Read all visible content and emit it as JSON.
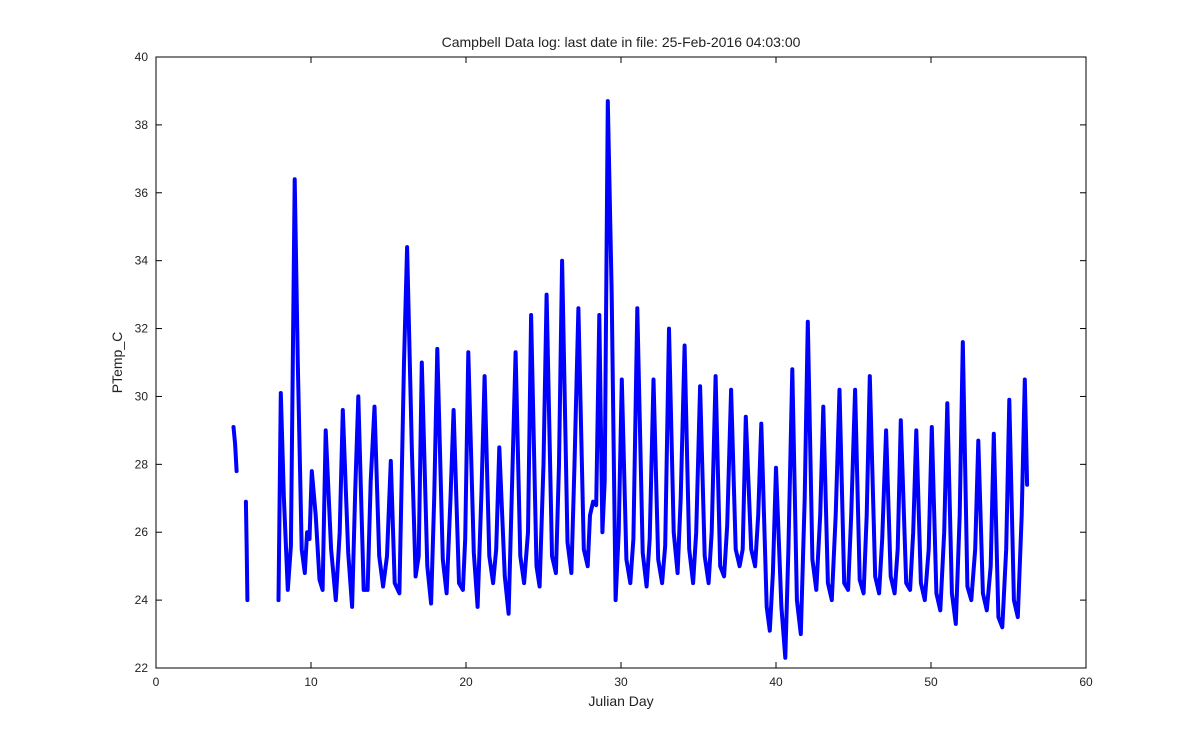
{
  "chart_data": {
    "type": "line",
    "title": "Campbell Data log: last date in file: 25-Feb-2016 04:03:00",
    "xlabel": "Julian Day",
    "ylabel": "PTemp_C",
    "xlim": [
      0,
      60
    ],
    "ylim": [
      22,
      40
    ],
    "xticks": [
      0,
      10,
      20,
      30,
      40,
      50,
      60
    ],
    "yticks": [
      22,
      24,
      26,
      28,
      30,
      32,
      34,
      36,
      38,
      40
    ],
    "grid": false,
    "legend": "none",
    "line_color": "#0000ff",
    "series": [
      {
        "segments": [
          [
            [
              5.0,
              29.1
            ],
            [
              5.1,
              28.6
            ],
            [
              5.2,
              27.8
            ]
          ],
          [
            [
              5.8,
              26.9
            ],
            [
              5.85,
              25.5
            ],
            [
              5.9,
              24.0
            ]
          ],
          [
            [
              7.9,
              24.0
            ],
            [
              8.05,
              30.1
            ],
            [
              8.25,
              27.0
            ],
            [
              8.5,
              24.3
            ],
            [
              8.7,
              25.6
            ],
            [
              8.95,
              36.4
            ],
            [
              9.15,
              31.0
            ],
            [
              9.4,
              25.5
            ],
            [
              9.6,
              24.8
            ],
            [
              9.75,
              26.0
            ],
            [
              9.9,
              25.8
            ],
            [
              10.05,
              27.8
            ],
            [
              10.3,
              26.5
            ],
            [
              10.55,
              24.6
            ],
            [
              10.75,
              24.3
            ],
            [
              10.95,
              29.0
            ],
            [
              11.3,
              25.5
            ],
            [
              11.6,
              24.0
            ],
            [
              11.85,
              26.0
            ],
            [
              12.05,
              29.6
            ],
            [
              12.4,
              25.4
            ],
            [
              12.65,
              23.8
            ],
            [
              12.85,
              27.2
            ],
            [
              13.05,
              30.0
            ],
            [
              13.4,
              24.3
            ],
            [
              13.65,
              24.3
            ],
            [
              13.85,
              27.5
            ],
            [
              14.1,
              29.7
            ],
            [
              14.4,
              25.3
            ],
            [
              14.65,
              24.4
            ],
            [
              14.9,
              25.3
            ],
            [
              15.15,
              28.1
            ],
            [
              15.4,
              24.5
            ],
            [
              15.7,
              24.2
            ],
            [
              16.0,
              31.0
            ],
            [
              16.2,
              34.4
            ],
            [
              16.5,
              28.5
            ],
            [
              16.75,
              24.7
            ],
            [
              16.95,
              25.3
            ],
            [
              17.15,
              31.0
            ],
            [
              17.5,
              25.0
            ],
            [
              17.75,
              23.9
            ],
            [
              17.95,
              27.0
            ],
            [
              18.15,
              31.4
            ],
            [
              18.5,
              25.2
            ],
            [
              18.75,
              24.2
            ],
            [
              19.0,
              27.0
            ],
            [
              19.2,
              29.6
            ],
            [
              19.55,
              24.5
            ],
            [
              19.8,
              24.3
            ],
            [
              19.95,
              25.8
            ],
            [
              20.15,
              31.3
            ],
            [
              20.5,
              25.4
            ],
            [
              20.75,
              23.8
            ],
            [
              21.0,
              27.2
            ],
            [
              21.2,
              30.6
            ],
            [
              21.5,
              25.3
            ],
            [
              21.75,
              24.5
            ],
            [
              21.95,
              25.5
            ],
            [
              22.15,
              28.5
            ],
            [
              22.5,
              24.7
            ],
            [
              22.75,
              23.6
            ],
            [
              22.95,
              27.0
            ],
            [
              23.2,
              31.3
            ],
            [
              23.5,
              25.3
            ],
            [
              23.75,
              24.5
            ],
            [
              24.0,
              26.0
            ],
            [
              24.2,
              32.4
            ],
            [
              24.55,
              25.0
            ],
            [
              24.75,
              24.4
            ],
            [
              25.0,
              28.0
            ],
            [
              25.2,
              33.0
            ],
            [
              25.55,
              25.3
            ],
            [
              25.8,
              24.8
            ],
            [
              26.0,
              28.0
            ],
            [
              26.2,
              34.0
            ],
            [
              26.55,
              25.7
            ],
            [
              26.8,
              24.8
            ],
            [
              27.0,
              28.0
            ],
            [
              27.25,
              32.6
            ],
            [
              27.6,
              25.5
            ],
            [
              27.85,
              25.0
            ],
            [
              28.0,
              26.5
            ],
            [
              28.2,
              26.9
            ],
            [
              28.4,
              26.8
            ],
            [
              28.6,
              32.4
            ],
            [
              28.8,
              26.0
            ],
            [
              28.95,
              27.5
            ],
            [
              29.15,
              38.7
            ],
            [
              29.4,
              33.0
            ],
            [
              29.65,
              24.0
            ],
            [
              29.85,
              26.0
            ],
            [
              30.05,
              30.5
            ],
            [
              30.35,
              25.2
            ],
            [
              30.6,
              24.5
            ],
            [
              30.8,
              25.8
            ],
            [
              31.05,
              32.6
            ],
            [
              31.4,
              25.4
            ],
            [
              31.65,
              24.4
            ],
            [
              31.85,
              25.8
            ],
            [
              32.1,
              30.5
            ],
            [
              32.4,
              25.2
            ],
            [
              32.65,
              24.5
            ],
            [
              32.85,
              25.6
            ],
            [
              33.1,
              32.0
            ],
            [
              33.4,
              26.0
            ],
            [
              33.65,
              24.8
            ],
            [
              33.85,
              27.0
            ],
            [
              34.1,
              31.5
            ],
            [
              34.4,
              25.5
            ],
            [
              34.65,
              24.5
            ],
            [
              34.85,
              26.0
            ],
            [
              35.1,
              30.3
            ],
            [
              35.4,
              25.3
            ],
            [
              35.65,
              24.5
            ],
            [
              35.85,
              26.0
            ],
            [
              36.1,
              30.6
            ],
            [
              36.4,
              25.0
            ],
            [
              36.65,
              24.7
            ],
            [
              36.85,
              26.2
            ],
            [
              37.1,
              30.2
            ],
            [
              37.4,
              25.5
            ],
            [
              37.65,
              25.0
            ],
            [
              37.85,
              25.5
            ],
            [
              38.05,
              29.4
            ],
            [
              38.4,
              25.5
            ],
            [
              38.65,
              25.0
            ],
            [
              38.85,
              26.5
            ],
            [
              39.05,
              29.2
            ],
            [
              39.4,
              23.8
            ],
            [
              39.6,
              23.1
            ],
            [
              39.8,
              24.8
            ],
            [
              40.0,
              27.9
            ],
            [
              40.35,
              23.8
            ],
            [
              40.6,
              22.3
            ],
            [
              40.8,
              25.5
            ],
            [
              41.05,
              30.8
            ],
            [
              41.35,
              24.0
            ],
            [
              41.6,
              23.0
            ],
            [
              41.85,
              27.0
            ],
            [
              42.05,
              32.2
            ],
            [
              42.35,
              25.2
            ],
            [
              42.6,
              24.3
            ],
            [
              42.85,
              26.5
            ],
            [
              43.05,
              29.7
            ],
            [
              43.35,
              24.5
            ],
            [
              43.6,
              24.0
            ],
            [
              43.85,
              26.5
            ],
            [
              44.1,
              30.2
            ],
            [
              44.4,
              24.5
            ],
            [
              44.65,
              24.3
            ],
            [
              44.85,
              26.5
            ],
            [
              45.1,
              30.2
            ],
            [
              45.4,
              24.6
            ],
            [
              45.65,
              24.2
            ],
            [
              45.85,
              26.5
            ],
            [
              46.05,
              30.6
            ],
            [
              46.4,
              24.7
            ],
            [
              46.65,
              24.2
            ],
            [
              46.85,
              25.8
            ],
            [
              47.1,
              29.0
            ],
            [
              47.4,
              24.7
            ],
            [
              47.65,
              24.2
            ],
            [
              47.85,
              25.5
            ],
            [
              48.05,
              29.3
            ],
            [
              48.4,
              24.5
            ],
            [
              48.65,
              24.3
            ],
            [
              48.85,
              26.0
            ],
            [
              49.05,
              29.0
            ],
            [
              49.35,
              24.5
            ],
            [
              49.6,
              24.0
            ],
            [
              49.85,
              25.5
            ],
            [
              50.05,
              29.1
            ],
            [
              50.35,
              24.2
            ],
            [
              50.6,
              23.7
            ],
            [
              50.85,
              26.0
            ],
            [
              51.05,
              29.8
            ],
            [
              51.35,
              24.2
            ],
            [
              51.6,
              23.3
            ],
            [
              51.85,
              26.5
            ],
            [
              52.05,
              31.6
            ],
            [
              52.35,
              24.4
            ],
            [
              52.6,
              24.0
            ],
            [
              52.85,
              25.5
            ],
            [
              53.05,
              28.7
            ],
            [
              53.35,
              24.2
            ],
            [
              53.6,
              23.7
            ],
            [
              53.85,
              25.0
            ],
            [
              54.05,
              28.9
            ],
            [
              54.35,
              23.5
            ],
            [
              54.6,
              23.2
            ],
            [
              54.85,
              25.5
            ],
            [
              55.05,
              29.9
            ],
            [
              55.35,
              24.0
            ],
            [
              55.6,
              23.5
            ],
            [
              55.85,
              26.5
            ],
            [
              56.05,
              30.5
            ],
            [
              56.2,
              27.4
            ]
          ]
        ]
      }
    ]
  }
}
